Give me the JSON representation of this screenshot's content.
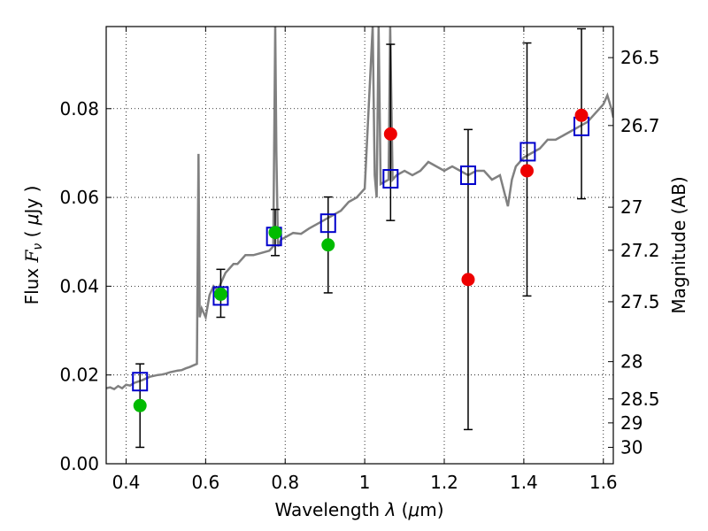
{
  "chart_data": {
    "type": "scatter",
    "title": "",
    "xlabel_prefix": "Wavelength ",
    "xlabel_symbol": "λ",
    "xlabel_suffix": " (",
    "xlabel_mu": "μ",
    "xlabel_unit": "m)",
    "ylabel_prefix": "Flux ",
    "ylabel_symbol": "F",
    "ylabel_sub": "ν",
    "ylabel_open": " ( ",
    "ylabel_mu": "μ",
    "ylabel_unit": "Jy )",
    "y2label": "Magnitude (AB)",
    "xlim": [
      0.35,
      1.625
    ],
    "ylim": [
      0.0,
      0.0985
    ],
    "grid": true,
    "xticks": [
      0.4,
      0.6,
      0.8,
      1.0,
      1.2,
      1.4,
      1.6
    ],
    "xtick_labels": [
      "0.4",
      "0.6",
      "0.8",
      "1",
      "1.2",
      "1.4",
      "1.6"
    ],
    "yticks": [
      0.0,
      0.02,
      0.04,
      0.06,
      0.08
    ],
    "ytick_labels": [
      "0.00",
      "0.02",
      "0.04",
      "0.06",
      "0.08"
    ],
    "y2ticks": [
      {
        "label": "26.5",
        "flux": 0.0915
      },
      {
        "label": "26.7",
        "flux": 0.0762
      },
      {
        "label": "27",
        "flux": 0.0578
      },
      {
        "label": "27.2",
        "flux": 0.0481
      },
      {
        "label": "27.5",
        "flux": 0.0365
      },
      {
        "label": "28",
        "flux": 0.023
      },
      {
        "label": "28.5",
        "flux": 0.0146
      },
      {
        "label": "29",
        "flux": 0.0092
      },
      {
        "label": "30",
        "flux": 0.0037
      }
    ],
    "series": [
      {
        "kind": "spectrum",
        "color": "#808080",
        "x": [
          0.35,
          0.36,
          0.37,
          0.38,
          0.39,
          0.4,
          0.41,
          0.42,
          0.43,
          0.44,
          0.45,
          0.46,
          0.47,
          0.48,
          0.49,
          0.5,
          0.51,
          0.52,
          0.53,
          0.54,
          0.55,
          0.56,
          0.57,
          0.578,
          0.582,
          0.585,
          0.59,
          0.6,
          0.61,
          0.62,
          0.63,
          0.64,
          0.65,
          0.66,
          0.67,
          0.68,
          0.69,
          0.7,
          0.72,
          0.74,
          0.76,
          0.77,
          0.775,
          0.778,
          0.782,
          0.79,
          0.8,
          0.82,
          0.84,
          0.86,
          0.88,
          0.9,
          0.92,
          0.94,
          0.96,
          0.98,
          1.0,
          1.02,
          1.025,
          1.03,
          1.035,
          1.04,
          1.06,
          1.064,
          1.07,
          1.08,
          1.1,
          1.12,
          1.14,
          1.16,
          1.18,
          1.2,
          1.22,
          1.24,
          1.26,
          1.28,
          1.3,
          1.32,
          1.34,
          1.36,
          1.37,
          1.38,
          1.39,
          1.4,
          1.42,
          1.44,
          1.46,
          1.48,
          1.5,
          1.52,
          1.54,
          1.56,
          1.58,
          1.6,
          1.61,
          1.62,
          1.625
        ],
        "y": [
          0.017,
          0.0172,
          0.0168,
          0.0175,
          0.017,
          0.0178,
          0.0176,
          0.0182,
          0.0185,
          0.0188,
          0.0192,
          0.0196,
          0.0198,
          0.02,
          0.0201,
          0.0203,
          0.0206,
          0.0208,
          0.021,
          0.0211,
          0.0215,
          0.0218,
          0.0222,
          0.0225,
          0.0698,
          0.033,
          0.035,
          0.033,
          0.038,
          0.04,
          0.039,
          0.041,
          0.043,
          0.044,
          0.045,
          0.045,
          0.046,
          0.047,
          0.047,
          0.0475,
          0.048,
          0.049,
          0.0985,
          0.07,
          0.049,
          0.0505,
          0.051,
          0.052,
          0.0518,
          0.053,
          0.054,
          0.055,
          0.056,
          0.057,
          0.059,
          0.06,
          0.062,
          0.0985,
          0.065,
          0.06,
          0.0985,
          0.063,
          0.064,
          0.0985,
          0.064,
          0.065,
          0.066,
          0.065,
          0.066,
          0.068,
          0.067,
          0.066,
          0.067,
          0.066,
          0.065,
          0.066,
          0.066,
          0.064,
          0.065,
          0.058,
          0.064,
          0.067,
          0.068,
          0.069,
          0.07,
          0.071,
          0.073,
          0.073,
          0.074,
          0.075,
          0.076,
          0.077,
          0.079,
          0.081,
          0.083,
          0.08,
          0.078
        ]
      },
      {
        "kind": "model_squares",
        "color": "#0000cc",
        "x": [
          0.435,
          0.638,
          0.772,
          0.908,
          1.065,
          1.26,
          1.41,
          1.545
        ],
        "y": [
          0.0185,
          0.0378,
          0.0512,
          0.0542,
          0.0642,
          0.065,
          0.0703,
          0.076
        ]
      },
      {
        "kind": "detections",
        "color": "#00bb00",
        "x": [
          0.435,
          0.638,
          0.775,
          0.908
        ],
        "y": [
          0.0131,
          0.0382,
          0.0521,
          0.0493
        ],
        "err_low": [
          0.0037,
          0.033,
          0.0469,
          0.0385
        ],
        "err_high": [
          0.0225,
          0.0438,
          0.0573,
          0.0601
        ]
      },
      {
        "kind": "upper_band",
        "color": "#ee0000",
        "x": [
          1.065,
          1.26,
          1.408,
          1.545
        ],
        "y": [
          0.0743,
          0.0415,
          0.066,
          0.0785
        ],
        "err_low": [
          0.0548,
          0.0077,
          0.0378,
          0.0597
        ],
        "err_high": [
          0.0945,
          0.0753,
          0.0948,
          0.098
        ]
      }
    ]
  }
}
